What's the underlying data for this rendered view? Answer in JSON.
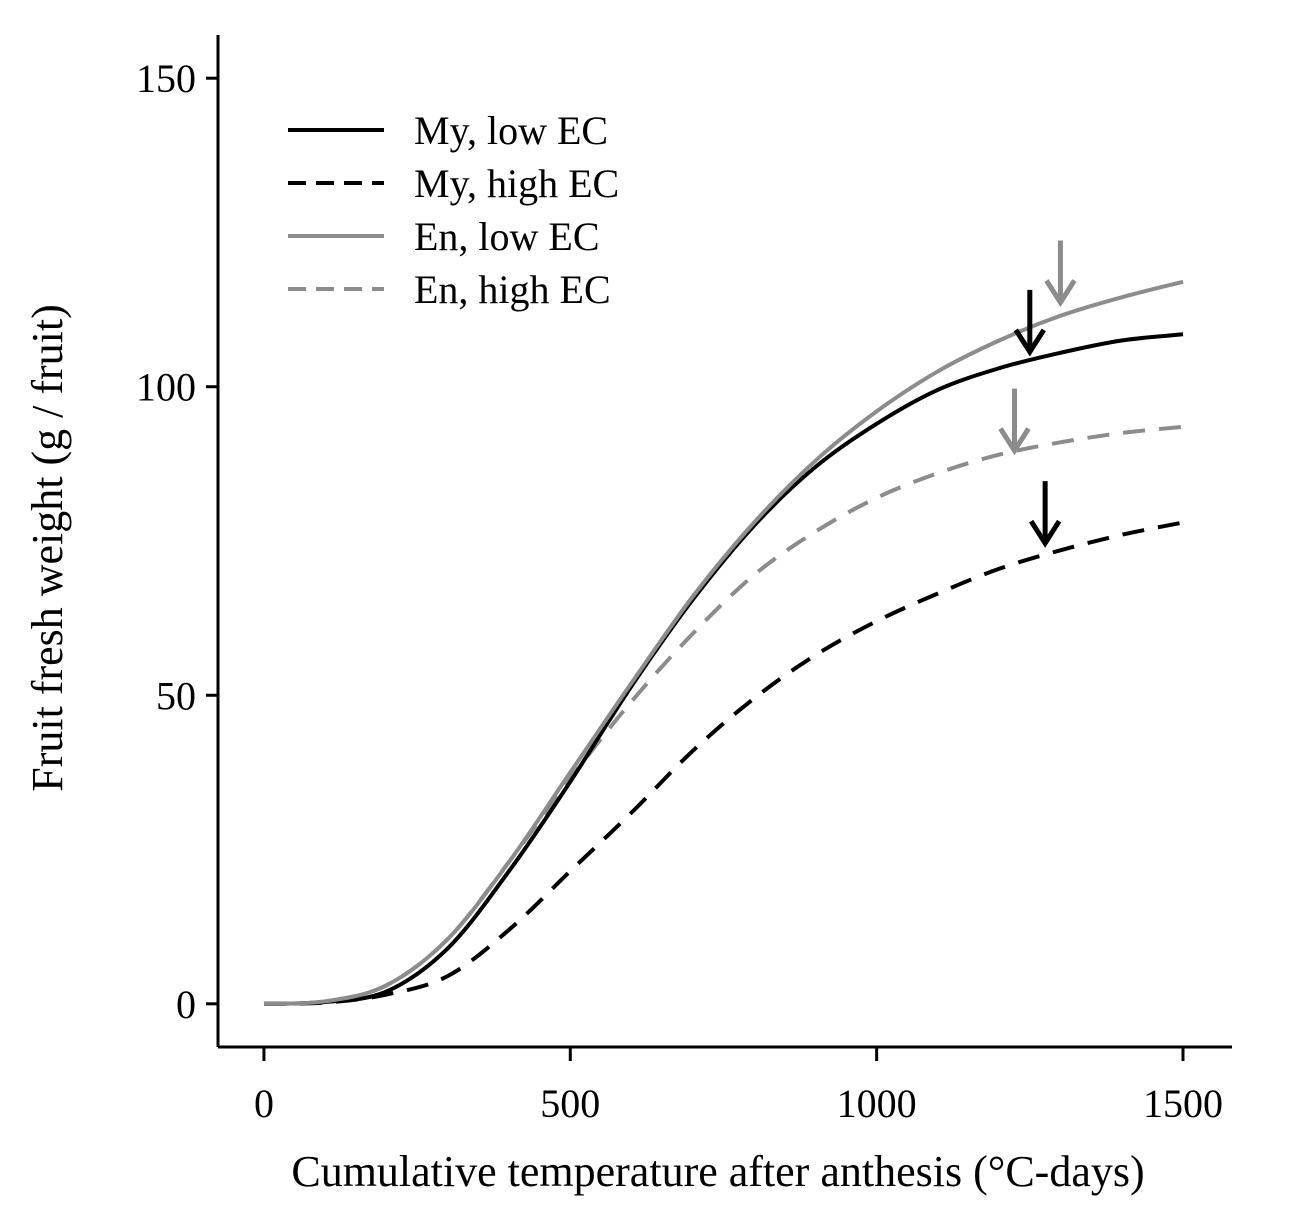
{
  "chart_data": {
    "type": "line",
    "title": "",
    "xlabel": "Cumulative temperature after anthesis (°C-days)",
    "ylabel": "Fruit fresh weight (g / fruit)",
    "xlim": [
      -75,
      1580
    ],
    "ylim": [
      -7,
      157
    ],
    "xticks": [
      0,
      500,
      1000,
      1500
    ],
    "yticks": [
      0,
      50,
      100,
      150
    ],
    "xtick_labels": [
      "0",
      "500",
      "1000",
      "1500"
    ],
    "ytick_labels": [
      "0",
      "50",
      "100",
      "150"
    ],
    "grid": false,
    "legend_position": "top-left",
    "series": [
      {
        "name": "My, low EC",
        "color": "#000000",
        "dash": "solid",
        "x": [
          0,
          100,
          200,
          300,
          400,
          500,
          600,
          700,
          800,
          900,
          1000,
          1100,
          1200,
          1300,
          1400,
          1500
        ],
        "y": [
          0,
          0.3,
          2,
          9,
          21.5,
          36,
          51.5,
          65.5,
          77.5,
          87,
          94,
          99.5,
          103,
          105.5,
          107.5,
          108.5
        ]
      },
      {
        "name": "My, high EC",
        "color": "#000000",
        "dash": "dashed",
        "x": [
          0,
          100,
          200,
          300,
          400,
          500,
          600,
          700,
          800,
          900,
          1000,
          1100,
          1200,
          1300,
          1400,
          1500
        ],
        "y": [
          0,
          0.2,
          1.5,
          4.5,
          12,
          21.5,
          31,
          41,
          49.5,
          56.5,
          62,
          66.5,
          70.5,
          73.5,
          76,
          78
        ]
      },
      {
        "name": "En, low EC",
        "color": "#8c8c8c",
        "dash": "solid",
        "x": [
          0,
          100,
          200,
          300,
          400,
          500,
          600,
          700,
          800,
          900,
          1000,
          1100,
          1200,
          1300,
          1400,
          1500
        ],
        "y": [
          0,
          0.4,
          3,
          10.5,
          23,
          37.5,
          52,
          66,
          78,
          88,
          96,
          102.5,
          107.5,
          111.5,
          114.5,
          117
        ]
      },
      {
        "name": "En, high EC",
        "color": "#8c8c8c",
        "dash": "dashed",
        "x": [
          0,
          100,
          200,
          300,
          400,
          500,
          600,
          700,
          800,
          900,
          1000,
          1100,
          1200,
          1300,
          1400,
          1500
        ],
        "y": [
          0,
          0.4,
          3,
          10.5,
          23,
          36.5,
          49,
          60,
          69.5,
          76.5,
          82,
          86,
          89,
          91,
          92.5,
          93.5
        ]
      }
    ],
    "annotations": [
      {
        "type": "arrow",
        "series": "En, low EC",
        "x": 1300,
        "y": 113,
        "color": "#8c8c8c"
      },
      {
        "type": "arrow",
        "series": "My, low EC",
        "x": 1250,
        "y": 105,
        "color": "#000000"
      },
      {
        "type": "arrow",
        "series": "En, high EC",
        "x": 1225,
        "y": 89,
        "color": "#8c8c8c"
      },
      {
        "type": "arrow",
        "series": "My, high EC",
        "x": 1275,
        "y": 74,
        "color": "#000000"
      }
    ]
  }
}
